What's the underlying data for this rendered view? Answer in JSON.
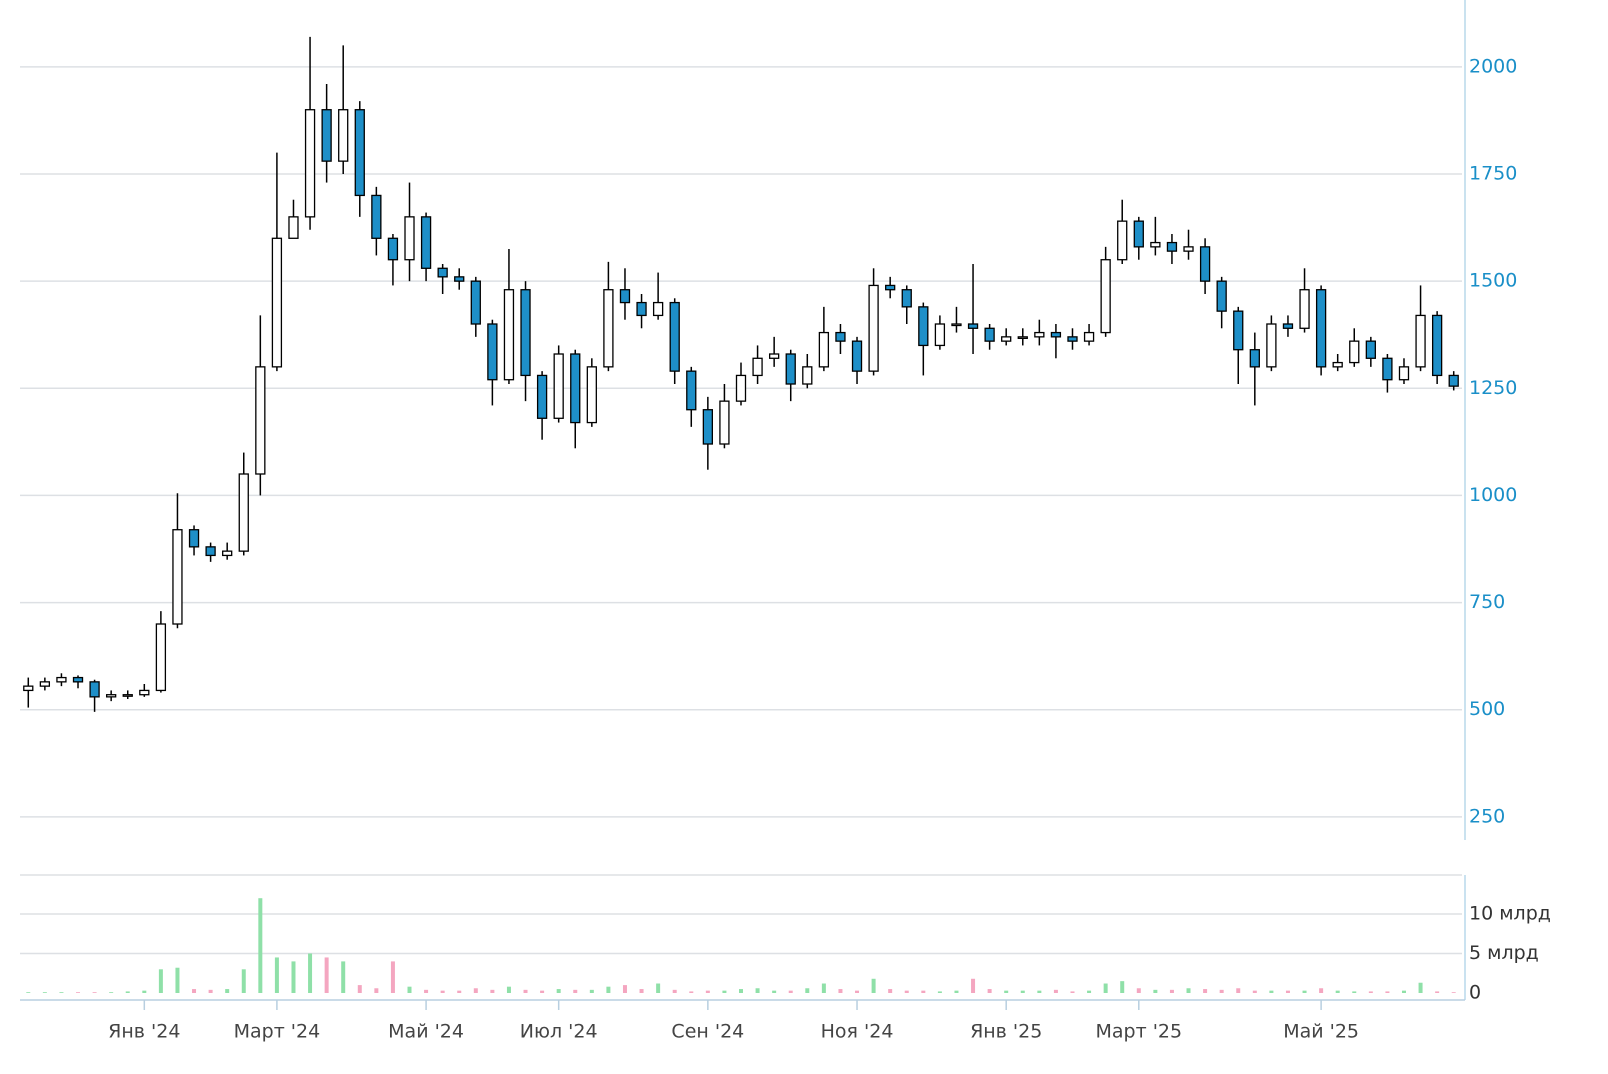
{
  "chart_data": [
    {
      "type": "candlestick",
      "categories": [
        null,
        null,
        null,
        null,
        null,
        null,
        null,
        "Янв '24",
        null,
        null,
        null,
        null,
        null,
        null,
        null,
        "Март '24",
        null,
        null,
        null,
        null,
        null,
        null,
        null,
        null,
        "Май '24",
        null,
        null,
        null,
        null,
        null,
        null,
        null,
        "Июл '24",
        null,
        null,
        null,
        null,
        null,
        null,
        null,
        null,
        "Сен '24",
        null,
        null,
        null,
        null,
        null,
        null,
        null,
        null,
        "Ноя '24",
        null,
        null,
        null,
        null,
        null,
        null,
        null,
        null,
        "Янв '25",
        null,
        null,
        null,
        null,
        null,
        null,
        null,
        "Март '25",
        null,
        null,
        null,
        null,
        null,
        null,
        null,
        null,
        null,
        null,
        "Май '25",
        null,
        null,
        null,
        null,
        null,
        null,
        null,
        null
      ],
      "open": [
        545,
        555,
        565,
        575,
        565,
        530,
        535,
        535,
        545,
        700,
        920,
        880,
        860,
        870,
        1050,
        1300,
        1600,
        1650,
        1900,
        1780,
        1900,
        1700,
        1600,
        1550,
        1650,
        1530,
        1510,
        1500,
        1400,
        1270,
        1480,
        1280,
        1180,
        1330,
        1170,
        1300,
        1480,
        1450,
        1420,
        1450,
        1290,
        1200,
        1120,
        1220,
        1280,
        1320,
        1330,
        1260,
        1300,
        1380,
        1360,
        1290,
        1490,
        1480,
        1440,
        1350,
        1400,
        1400,
        1390,
        1360,
        1370,
        1370,
        1380,
        1370,
        1360,
        1380,
        1550,
        1640,
        1580,
        1590,
        1570,
        1580,
        1500,
        1430,
        1340,
        1300,
        1400,
        1390,
        1480,
        1300,
        1310,
        1360,
        1320,
        1270,
        1300,
        1420,
        1280
      ],
      "high": [
        575,
        575,
        585,
        580,
        570,
        545,
        545,
        560,
        730,
        1005,
        930,
        890,
        890,
        1100,
        1420,
        1800,
        1690,
        2070,
        1960,
        2050,
        1920,
        1720,
        1610,
        1730,
        1660,
        1540,
        1530,
        1510,
        1410,
        1575,
        1500,
        1290,
        1350,
        1340,
        1320,
        1545,
        1530,
        1470,
        1520,
        1460,
        1300,
        1230,
        1260,
        1310,
        1350,
        1370,
        1340,
        1330,
        1440,
        1400,
        1370,
        1530,
        1510,
        1490,
        1450,
        1420,
        1440,
        1540,
        1400,
        1390,
        1390,
        1410,
        1400,
        1390,
        1400,
        1580,
        1690,
        1650,
        1650,
        1610,
        1620,
        1600,
        1510,
        1440,
        1380,
        1420,
        1420,
        1530,
        1490,
        1330,
        1390,
        1370,
        1330,
        1320,
        1490,
        1430,
        1290
      ],
      "low": [
        505,
        545,
        555,
        550,
        495,
        520,
        525,
        530,
        540,
        690,
        860,
        845,
        850,
        860,
        1000,
        1290,
        1600,
        1620,
        1730,
        1750,
        1650,
        1560,
        1490,
        1500,
        1500,
        1470,
        1480,
        1370,
        1210,
        1260,
        1220,
        1130,
        1170,
        1110,
        1160,
        1290,
        1410,
        1390,
        1410,
        1260,
        1160,
        1060,
        1110,
        1210,
        1260,
        1300,
        1220,
        1250,
        1290,
        1330,
        1260,
        1280,
        1460,
        1400,
        1280,
        1340,
        1380,
        1330,
        1340,
        1350,
        1350,
        1350,
        1320,
        1340,
        1350,
        1370,
        1540,
        1550,
        1560,
        1540,
        1550,
        1470,
        1390,
        1260,
        1210,
        1290,
        1370,
        1380,
        1280,
        1290,
        1300,
        1300,
        1240,
        1260,
        1290,
        1260,
        1245
      ],
      "close": [
        555,
        565,
        575,
        565,
        530,
        535,
        535,
        545,
        700,
        920,
        880,
        860,
        870,
        1050,
        1300,
        1600,
        1650,
        1900,
        1780,
        1900,
        1700,
        1600,
        1550,
        1650,
        1530,
        1510,
        1500,
        1400,
        1270,
        1480,
        1280,
        1180,
        1330,
        1170,
        1300,
        1480,
        1450,
        1420,
        1450,
        1290,
        1200,
        1120,
        1220,
        1280,
        1320,
        1330,
        1260,
        1300,
        1380,
        1360,
        1290,
        1490,
        1480,
        1440,
        1350,
        1400,
        1400,
        1390,
        1360,
        1370,
        1370,
        1380,
        1370,
        1360,
        1380,
        1550,
        1640,
        1580,
        1590,
        1570,
        1580,
        1500,
        1430,
        1340,
        1300,
        1400,
        1390,
        1480,
        1300,
        1310,
        1360,
        1320,
        1270,
        1300,
        1420,
        1280,
        1255
      ],
      "up_color": "#ffffff",
      "down_color": "#1e8fc8",
      "ylim": [
        196,
        2156
      ],
      "yticks": [
        250,
        500,
        750,
        1000,
        1250,
        1500,
        1750,
        2000
      ],
      "grid": true
    },
    {
      "type": "bar",
      "values": [
        0.1,
        0.1,
        0.1,
        0.1,
        0.1,
        0.1,
        0.2,
        0.3,
        3.0,
        3.2,
        0.5,
        0.4,
        0.5,
        3.0,
        12.0,
        4.5,
        4.0,
        5.0,
        4.5,
        4.0,
        1.0,
        0.6,
        4.0,
        0.8,
        0.4,
        0.3,
        0.3,
        0.6,
        0.4,
        0.8,
        0.4,
        0.3,
        0.5,
        0.4,
        0.4,
        0.8,
        1.0,
        0.5,
        1.2,
        0.4,
        0.2,
        0.3,
        0.3,
        0.5,
        0.6,
        0.3,
        0.3,
        0.6,
        1.2,
        0.5,
        0.3,
        1.8,
        0.5,
        0.3,
        0.3,
        0.2,
        0.3,
        1.8,
        0.5,
        0.3,
        0.3,
        0.3,
        0.4,
        0.2,
        0.3,
        1.2,
        1.5,
        0.6,
        0.4,
        0.4,
        0.6,
        0.5,
        0.4,
        0.6,
        0.3,
        0.3,
        0.3,
        0.3,
        0.6,
        0.3,
        0.2,
        0.2,
        0.2,
        0.3,
        1.3,
        0.2,
        0.1
      ],
      "up_color": "#8fe0a8",
      "down_color": "#f4a6c0",
      "ylim": [
        0,
        15
      ],
      "yticks": [
        0,
        {
          "value": 5,
          "label": "5 млрд"
        },
        {
          "value": 10,
          "label": "10 млрд"
        }
      ],
      "grid": true
    }
  ]
}
